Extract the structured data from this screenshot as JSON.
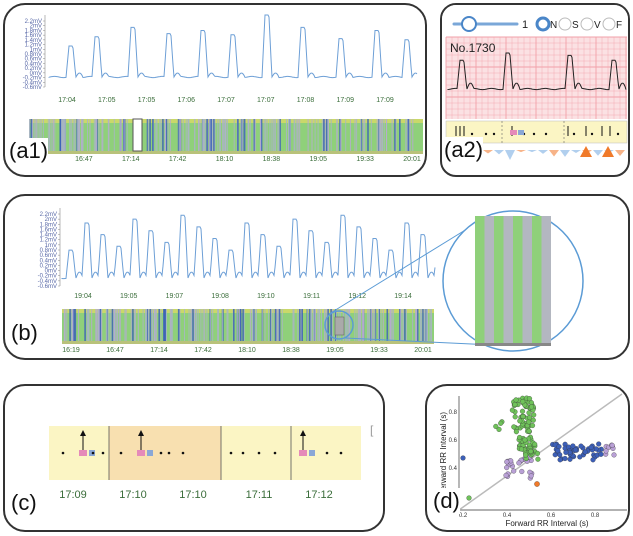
{
  "panels": {
    "a1": {
      "label": "(a1)",
      "y_ticks": [
        "2.2mV",
        "2mV",
        "1.8mV",
        "1.6mV",
        "1.4mV",
        "1.2mV",
        "1mV",
        "0.8mV",
        "0.6mV",
        "0.4mV",
        "0.2mV",
        "0mV",
        "-0.2mV",
        "-0.4mV",
        "-0.6mV"
      ],
      "ecg_times": [
        "17:04",
        "17:05",
        "17:05",
        "17:06",
        "17:07",
        "17:07",
        "17:08",
        "17:09",
        "17:09"
      ],
      "strip_times": [
        "16:19",
        "16:47",
        "17:14",
        "17:42",
        "18:10",
        "18:38",
        "19:05",
        "19:33",
        "20:01"
      ]
    },
    "a2": {
      "label": "(a2)",
      "slider_value": "1",
      "beat_types": [
        "N",
        "S",
        "V",
        "F"
      ],
      "selected_type": "N",
      "beat_number": "No.1730"
    },
    "b": {
      "label": "(b)",
      "y_ticks": [
        "2.2mV",
        "2mV",
        "1.8mV",
        "1.6mV",
        "1.4mV",
        "1.2mV",
        "1mV",
        "0.8mV",
        "0.6mV",
        "0.4mV",
        "0.2mV",
        "0mV",
        "-0.2mV",
        "-0.4mV",
        "-0.6mV"
      ],
      "ecg_times": [
        "19:04",
        "19:05",
        "19:07",
        "19:08",
        "19:10",
        "19:11",
        "19:12",
        "19:14"
      ],
      "strip_times": [
        "16:19",
        "16:47",
        "17:14",
        "17:42",
        "18:10",
        "18:38",
        "19:05",
        "19:33",
        "20:01"
      ]
    },
    "c": {
      "label": "(c)",
      "times": [
        "17:09",
        "17:10",
        "17:10",
        "17:11",
        "17:12"
      ]
    },
    "d": {
      "label": "(d)",
      "xlabel": "Forward RR Interval (s)",
      "ylabel": "Afterward RR Interval (s)",
      "x_ticks": [
        "0.2",
        "0.4",
        "0.6",
        "0.8"
      ],
      "y_ticks": [
        "0.2",
        "0.4",
        "0.6",
        "0.8"
      ]
    }
  },
  "colors": {
    "ecg_line": "#6d9fd6",
    "strip_green": "#8fd07a",
    "strip_blue": "#3e63b8",
    "grid_red": "#f2a0a8",
    "timeline_yellow": "#fbf5c4",
    "timeline_orange": "#f8e0b0",
    "scatter_green": "#6fc25a",
    "scatter_purple": "#b9a0d6",
    "scatter_blue": "#3c5fb8",
    "scatter_orange": "#f07a2a"
  }
}
